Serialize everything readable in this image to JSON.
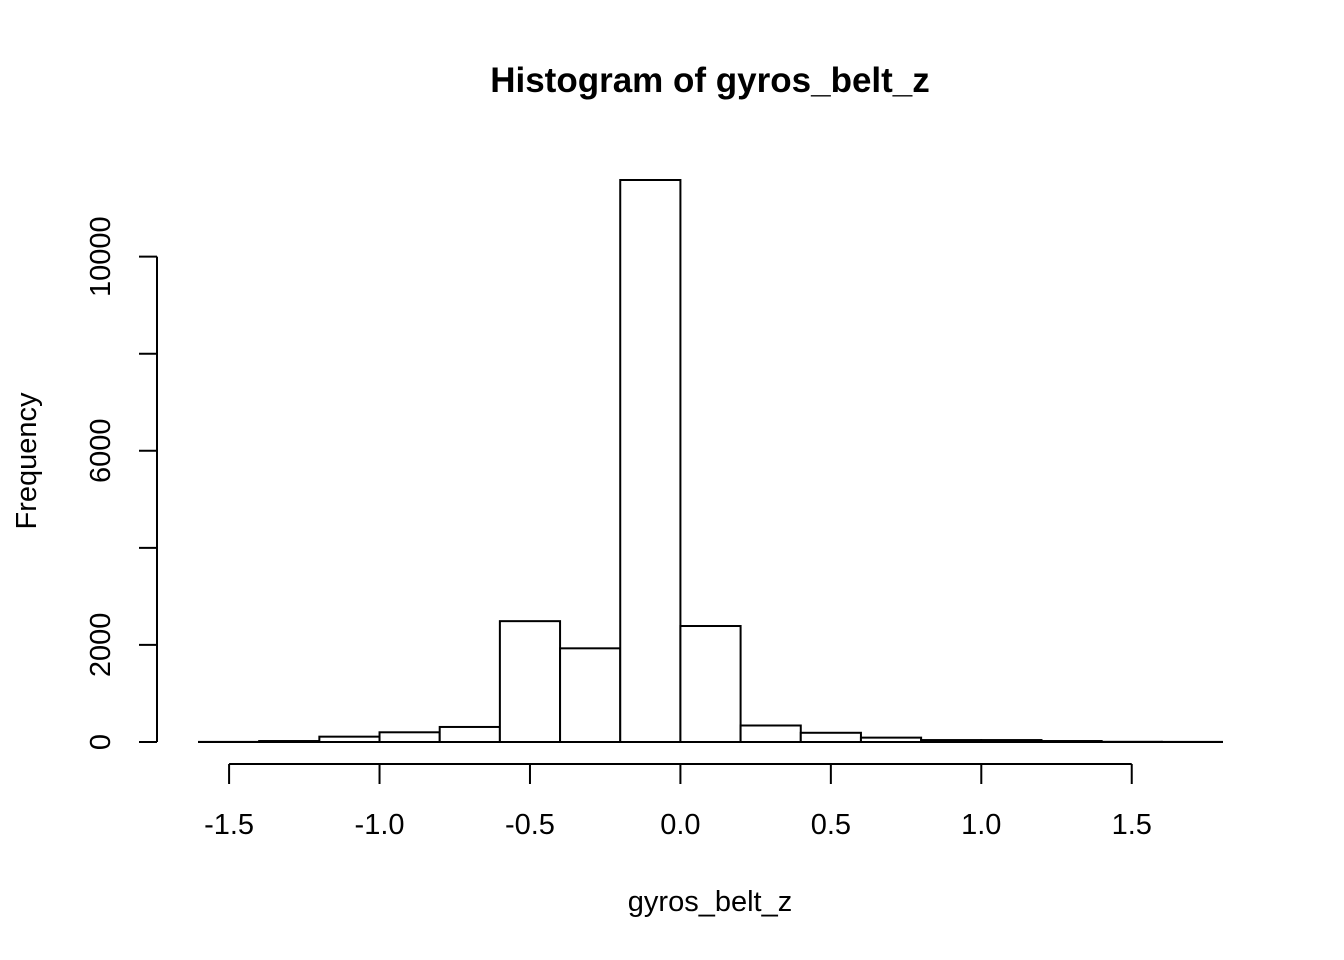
{
  "chart_data": {
    "type": "bar",
    "title": "Histogram of gyros_belt_z",
    "xlabel": "gyros_belt_z",
    "ylabel": "Frequency",
    "bin_edges": [
      -1.6,
      -1.4,
      -1.2,
      -1.0,
      -0.8,
      -0.6,
      -0.4,
      -0.2,
      0.0,
      0.2,
      0.4,
      0.6,
      0.8,
      1.0,
      1.2,
      1.4,
      1.6,
      1.8
    ],
    "values": [
      2,
      20,
      110,
      200,
      310,
      2490,
      1930,
      11580,
      2390,
      340,
      190,
      90,
      40,
      40,
      20,
      4,
      2
    ],
    "xlim": [
      -1.6,
      1.8
    ],
    "ylim": [
      0,
      11580
    ],
    "x_ticks": [
      -1.5,
      -1.0,
      -0.5,
      0.0,
      0.5,
      1.0,
      1.5
    ],
    "x_tick_labels": [
      "-1.5",
      "-1.0",
      "-0.5",
      "0.0",
      "0.5",
      "1.0",
      "1.5"
    ],
    "y_ticks": [
      0,
      2000,
      4000,
      6000,
      8000,
      10000
    ],
    "y_tick_labels": [
      "0",
      "2000",
      "",
      "6000",
      "",
      "10000"
    ],
    "grid": false,
    "legend": "none",
    "colors": {
      "bar_fill": "#ffffff",
      "bar_stroke": "#000000",
      "axis": "#000000",
      "text": "#000000"
    }
  }
}
